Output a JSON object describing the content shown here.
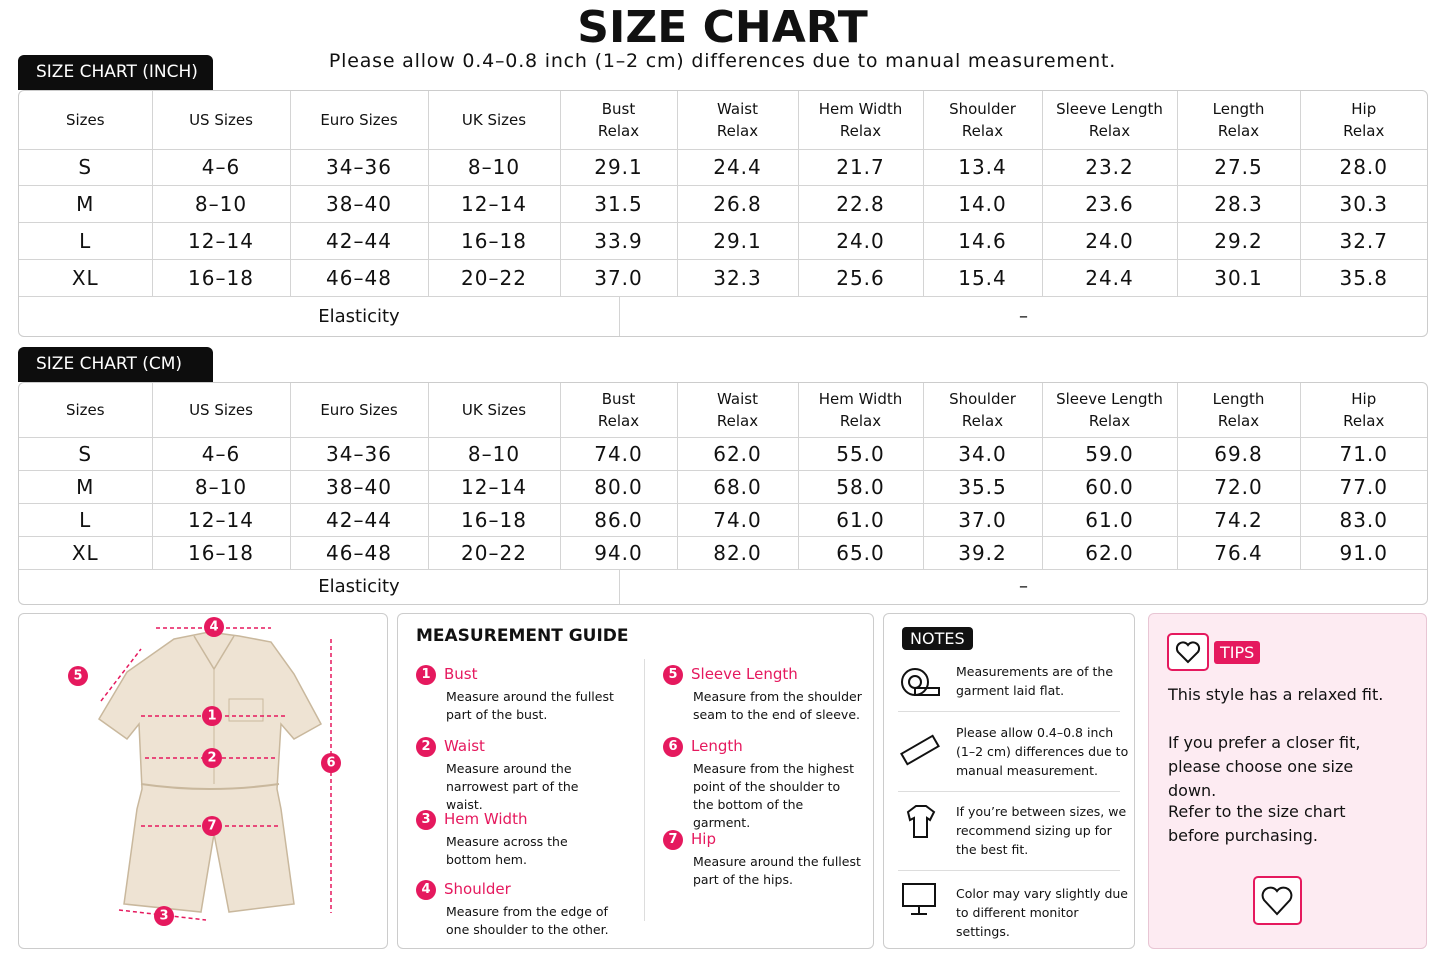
{
  "header": {
    "title": "SIZE CHART",
    "subtitle": "Please allow 0.4–0.8 inch (1–2 cm) differences due to manual measurement."
  },
  "tables": [
    {
      "label": "SIZE CHART (INCH)",
      "headers": [
        [
          "Sizes"
        ],
        [
          "US Sizes"
        ],
        [
          "Euro Sizes"
        ],
        [
          "UK Sizes"
        ],
        [
          "Bust",
          "Relax"
        ],
        [
          "Waist",
          "Relax"
        ],
        [
          "Hem Width",
          "Relax"
        ],
        [
          "Shoulder",
          "Relax"
        ],
        [
          "Sleeve Length",
          "Relax"
        ],
        [
          "Length",
          "Relax"
        ],
        [
          "Hip",
          "Relax"
        ]
      ],
      "rows": [
        [
          "S",
          "4–6",
          "34–36",
          "8–10",
          "29.1",
          "24.4",
          "21.7",
          "13.4",
          "23.2",
          "27.5",
          "28.0"
        ],
        [
          "M",
          "8–10",
          "38–40",
          "12–14",
          "31.5",
          "26.8",
          "22.8",
          "14.0",
          "23.6",
          "28.3",
          "30.3"
        ],
        [
          "L",
          "12–14",
          "42–44",
          "16–18",
          "33.9",
          "29.1",
          "24.0",
          "14.6",
          "24.0",
          "29.2",
          "32.7"
        ],
        [
          "XL",
          "16–18",
          "46–48",
          "20–22",
          "37.0",
          "32.3",
          "25.6",
          "15.4",
          "24.4",
          "30.1",
          "35.8"
        ]
      ],
      "elasticity": {
        "label": "Elasticity",
        "value": "–"
      }
    },
    {
      "label": "SIZE CHART (CM)",
      "headers": [
        [
          "Sizes"
        ],
        [
          "US Sizes"
        ],
        [
          "Euro Sizes"
        ],
        [
          "UK Sizes"
        ],
        [
          "Bust",
          "Relax"
        ],
        [
          "Waist",
          "Relax"
        ],
        [
          "Hem Width",
          "Relax"
        ],
        [
          "Shoulder",
          "Relax"
        ],
        [
          "Sleeve Length",
          "Relax"
        ],
        [
          "Length",
          "Relax"
        ],
        [
          "Hip",
          "Relax"
        ]
      ],
      "rows": [
        [
          "S",
          "4–6",
          "34–36",
          "8–10",
          "74.0",
          "62.0",
          "55.0",
          "34.0",
          "59.0",
          "69.8",
          "71.0"
        ],
        [
          "M",
          "8–10",
          "38–40",
          "12–14",
          "80.0",
          "68.0",
          "58.0",
          "35.5",
          "60.0",
          "72.0",
          "77.0"
        ],
        [
          "L",
          "12–14",
          "42–44",
          "16–18",
          "86.0",
          "74.0",
          "61.0",
          "37.0",
          "61.0",
          "74.2",
          "83.0"
        ],
        [
          "XL",
          "16–18",
          "46–48",
          "20–22",
          "94.0",
          "82.0",
          "65.0",
          "39.2",
          "62.0",
          "76.4",
          "91.0"
        ]
      ],
      "elasticity": {
        "label": "Elasticity",
        "value": "–"
      }
    }
  ],
  "guide": {
    "title": "MEASUREMENT GUIDE",
    "items": [
      {
        "number": "1",
        "name": "Bust",
        "text": "Measure around the fullest part of the bust."
      },
      {
        "number": "2",
        "name": "Waist",
        "text": "Measure around the narrowest part of the waist."
      },
      {
        "number": "3",
        "name": "Hem Width",
        "text": "Measure across the bottom hem."
      },
      {
        "number": "4",
        "name": "Shoulder",
        "text": "Measure from the edge of one shoulder to the other."
      },
      {
        "number": "5",
        "name": "Sleeve Length",
        "text": "Measure from the shoulder seam to the end of sleeve."
      },
      {
        "number": "6",
        "name": "Length",
        "text": "Measure from the highest point of the shoulder to the bottom of the garment."
      },
      {
        "number": "7",
        "name": "Hip",
        "text": "Measure around the fullest part of the hips."
      }
    ]
  },
  "notes": {
    "label": "NOTES",
    "items": [
      "Measurements are of the garment laid flat.",
      "Please allow 0.4–0.8 inch (1–2 cm) differences due to manual measurement.",
      "If you’re between sizes, we recommend sizing up for the best fit.",
      "Color may vary slightly due to different monitor settings."
    ]
  },
  "tips": {
    "label": "TIPS",
    "paragraphs": [
      "This style has a relaxed fit.",
      "If you prefer a closer fit, please choose one size down.",
      "Refer to the size chart before purchasing."
    ]
  }
}
